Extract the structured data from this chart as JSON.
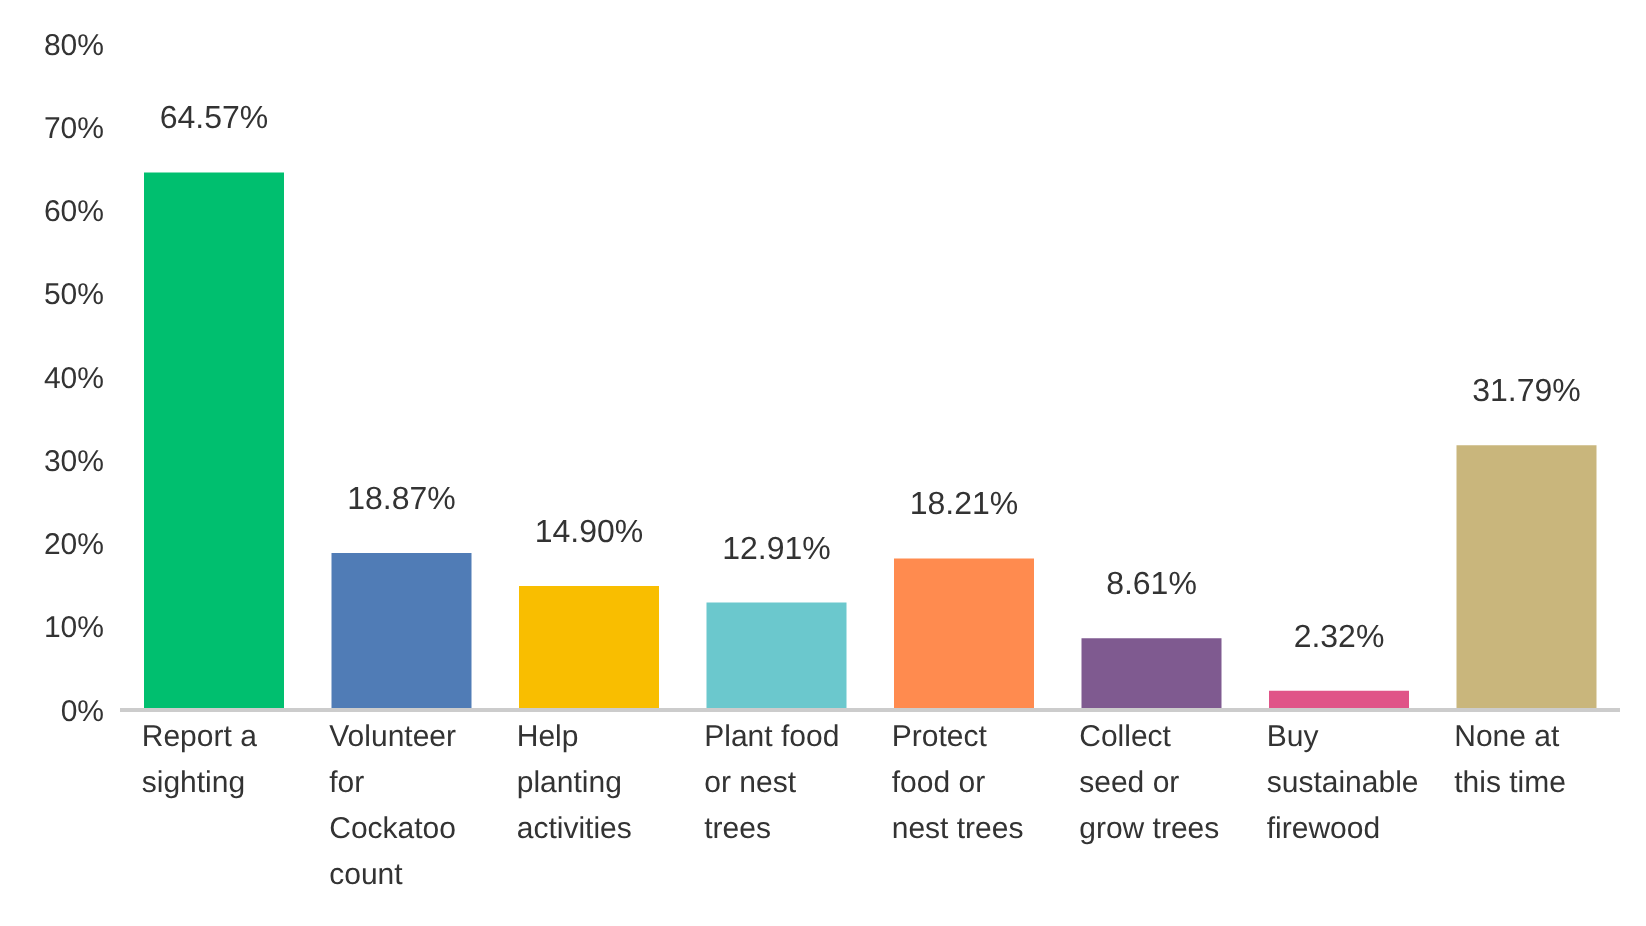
{
  "chart_data": {
    "type": "bar",
    "categories": [
      "Report a sighting",
      "Volunteer for Cockatoo count",
      "Help planting activities",
      "Plant food or nest trees",
      "Protect food or nest trees",
      "Collect seed or grow trees",
      "Buy sustainable firewood",
      "None at this time"
    ],
    "values": [
      64.57,
      18.87,
      14.9,
      12.91,
      18.21,
      8.61,
      2.32,
      31.79
    ],
    "colors": [
      "#00bf6f",
      "#507cb6",
      "#f9be00",
      "#6bc8cd",
      "#ff8b4f",
      "#7f5a90",
      "#e05488",
      "#c9b67c"
    ],
    "value_labels": [
      "64.57%",
      "18.87%",
      "14.90%",
      "12.91%",
      "18.21%",
      "8.61%",
      "2.32%",
      "31.79%"
    ],
    "ylim": [
      0,
      80
    ],
    "yticks": [
      {
        "value": 0,
        "label": "0%"
      },
      {
        "value": 10,
        "label": "10%"
      },
      {
        "value": 20,
        "label": "20%"
      },
      {
        "value": 30,
        "label": "30%"
      },
      {
        "value": 40,
        "label": "40%"
      },
      {
        "value": 50,
        "label": "50%"
      },
      {
        "value": 60,
        "label": "60%"
      },
      {
        "value": 70,
        "label": "70%"
      },
      {
        "value": 80,
        "label": "80%"
      }
    ],
    "grid": false
  }
}
